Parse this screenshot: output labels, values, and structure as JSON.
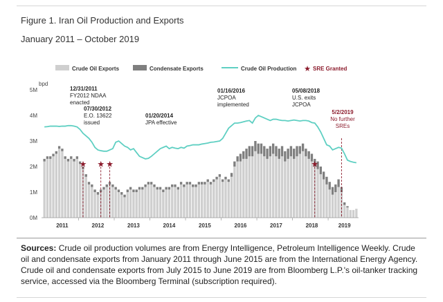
{
  "figure": {
    "title": "Figure 1. Iran Oil Production and Exports",
    "subtitle": "January 2011 – October 2019"
  },
  "chart_data": {
    "type": "bar",
    "title": "Figure 1. Iran Oil Production and Exports",
    "subtitle": "January 2011 – October 2019",
    "xlabel": "",
    "ylabel": "bpd",
    "ylim": [
      0,
      5
    ],
    "yticks": [
      {
        "value": 0,
        "label": "0M"
      },
      {
        "value": 1,
        "label": "1M"
      },
      {
        "value": 2,
        "label": "2M"
      },
      {
        "value": 3,
        "label": "3M"
      },
      {
        "value": 4,
        "label": "4M"
      },
      {
        "value": 5,
        "label": "5M"
      }
    ],
    "x_start_year": 2011,
    "months": 106,
    "xticks": [
      {
        "index": 6,
        "label": "2011"
      },
      {
        "index": 18,
        "label": "2012"
      },
      {
        "index": 30,
        "label": "2013"
      },
      {
        "index": 42,
        "label": "2014"
      },
      {
        "index": 54,
        "label": "2015"
      },
      {
        "index": 66,
        "label": "2016"
      },
      {
        "index": 78,
        "label": "2017"
      },
      {
        "index": 90,
        "label": "2018"
      },
      {
        "index": 101,
        "label": "2019"
      }
    ],
    "legend": [
      {
        "name": "Crude Oil Exports",
        "kind": "bar",
        "color": "#cfcfcf"
      },
      {
        "name": "Condensate Exports",
        "kind": "bar",
        "color": "#7f7f7f"
      },
      {
        "name": "Crude Oil Production",
        "kind": "line",
        "color": "#5ecfc2"
      },
      {
        "name": "SRE Granted",
        "kind": "star",
        "color": "#8b1a2b"
      }
    ],
    "legend_position": "top",
    "grid": false,
    "series": [
      {
        "name": "Crude Oil Exports",
        "values": [
          2.2,
          2.3,
          2.3,
          2.4,
          2.5,
          2.7,
          2.6,
          2.3,
          2.2,
          2.3,
          2.2,
          2.3,
          2.1,
          1.9,
          1.6,
          1.3,
          1.2,
          1.0,
          0.9,
          1.0,
          1.1,
          1.2,
          1.3,
          1.2,
          1.1,
          1.0,
          0.9,
          0.8,
          1.0,
          1.1,
          1.0,
          1.0,
          1.1,
          1.1,
          1.2,
          1.3,
          1.3,
          1.2,
          1.1,
          1.1,
          1.0,
          1.1,
          1.1,
          1.2,
          1.2,
          1.1,
          1.3,
          1.2,
          1.3,
          1.3,
          1.2,
          1.2,
          1.3,
          1.3,
          1.3,
          1.4,
          1.3,
          1.4,
          1.5,
          1.6,
          1.4,
          1.5,
          1.4,
          1.6,
          2.0,
          2.2,
          2.2,
          2.3,
          2.3,
          2.4,
          2.4,
          2.6,
          2.5,
          2.5,
          2.4,
          2.3,
          2.4,
          2.5,
          2.4,
          2.3,
          2.4,
          2.2,
          2.3,
          2.4,
          2.3,
          2.4,
          2.5,
          2.6,
          2.4,
          2.3,
          2.2,
          2.0,
          1.9,
          1.7,
          1.5,
          1.3,
          1.1,
          0.9,
          1.0,
          1.2,
          1.0,
          0.5,
          0.4,
          0.3,
          0.3,
          0.35
        ]
      },
      {
        "name": "Condensate Exports",
        "values": [
          0.1,
          0.1,
          0.1,
          0.1,
          0.1,
          0.1,
          0.1,
          0.1,
          0.1,
          0.1,
          0.1,
          0.1,
          0.1,
          0.1,
          0.1,
          0.1,
          0.1,
          0.1,
          0.1,
          0.1,
          0.1,
          0.1,
          0.1,
          0.1,
          0.1,
          0.1,
          0.1,
          0.1,
          0.1,
          0.1,
          0.1,
          0.1,
          0.1,
          0.1,
          0.1,
          0.1,
          0.1,
          0.1,
          0.1,
          0.1,
          0.1,
          0.1,
          0.1,
          0.1,
          0.1,
          0.1,
          0.1,
          0.1,
          0.1,
          0.1,
          0.1,
          0.1,
          0.1,
          0.1,
          0.1,
          0.1,
          0.1,
          0.1,
          0.1,
          0.1,
          0.1,
          0.1,
          0.1,
          0.15,
          0.2,
          0.2,
          0.3,
          0.3,
          0.4,
          0.4,
          0.4,
          0.4,
          0.4,
          0.4,
          0.4,
          0.4,
          0.4,
          0.4,
          0.4,
          0.4,
          0.4,
          0.4,
          0.4,
          0.4,
          0.4,
          0.4,
          0.3,
          0.3,
          0.3,
          0.3,
          0.3,
          0.3,
          0.3,
          0.3,
          0.3,
          0.3,
          0.3,
          0.3,
          0.3,
          0.3,
          0.2,
          0.1,
          0.05,
          0.0,
          0.0,
          0.0
        ]
      },
      {
        "name": "Crude Oil Production",
        "values": [
          3.55,
          3.56,
          3.58,
          3.58,
          3.58,
          3.57,
          3.58,
          3.58,
          3.6,
          3.6,
          3.58,
          3.55,
          3.45,
          3.3,
          3.2,
          3.1,
          2.95,
          2.75,
          2.65,
          2.62,
          2.6,
          2.6,
          2.65,
          2.7,
          2.95,
          3.0,
          2.9,
          2.8,
          2.75,
          2.65,
          2.7,
          2.55,
          2.4,
          2.35,
          2.3,
          2.32,
          2.4,
          2.5,
          2.6,
          2.7,
          2.75,
          2.8,
          2.7,
          2.75,
          2.72,
          2.7,
          2.75,
          2.72,
          2.8,
          2.82,
          2.85,
          2.85,
          2.85,
          2.88,
          2.9,
          2.92,
          2.95,
          2.96,
          2.98,
          3.0,
          3.1,
          3.3,
          3.5,
          3.6,
          3.7,
          3.7,
          3.72,
          3.75,
          3.78,
          3.8,
          3.7,
          3.9,
          4.0,
          3.95,
          3.9,
          3.85,
          3.8,
          3.85,
          3.85,
          3.82,
          3.8,
          3.8,
          3.78,
          3.8,
          3.82,
          3.8,
          3.78,
          3.8,
          3.8,
          3.78,
          3.72,
          3.7,
          3.55,
          3.35,
          3.1,
          2.85,
          2.8,
          2.65,
          2.7,
          2.75,
          2.72,
          2.5,
          2.25,
          2.2,
          2.17,
          2.15
        ]
      }
    ],
    "sre_points": [
      {
        "index": 13,
        "value": 2.1
      },
      {
        "index": 19,
        "value": 2.1
      },
      {
        "index": 22,
        "value": 2.1
      },
      {
        "index": 91,
        "value": 2.1
      }
    ],
    "annotations": [
      {
        "id": "ndaa",
        "date": "12/31/2011",
        "lines": [
          "FY2012 NDAA",
          "enacted"
        ],
        "index": 12,
        "color": "#222222"
      },
      {
        "id": "eo13622",
        "date": "07/30/2012",
        "lines": [
          "E.O. 13622",
          "issued"
        ],
        "index": 19,
        "color": "#222222"
      },
      {
        "id": "jpa",
        "date": "01/20/2014",
        "lines": [
          "JPA effective"
        ],
        "index": 36,
        "color": "#222222"
      },
      {
        "id": "jcpoa-impl",
        "date": "01/16/2016",
        "lines": [
          "JCPOA",
          "implemented"
        ],
        "index": 60,
        "color": "#222222"
      },
      {
        "id": "us-exits",
        "date": "05/08/2018",
        "lines": [
          "U.S. exits",
          "JCPOA"
        ],
        "index": 88,
        "color": "#222222"
      },
      {
        "id": "no-sre",
        "date": "5/2/2019",
        "lines": [
          "No further",
          "SREs"
        ],
        "index": 100,
        "color": "#8b1a2b"
      }
    ],
    "colors": {
      "crude": "#cfcfcf",
      "condensate": "#7f7f7f",
      "production": "#5ecfc2",
      "sre": "#8b1a2b"
    }
  },
  "sources": {
    "label": "Sources:",
    "text": " Crude oil production volumes are from Energy Intelligence, Petroleum Intelligence Weekly. Crude oil and condensate exports from January 2011 through June 2015 are from the International Energy Agency. Crude oil and condensate exports from July 2015 to June 2019 are from Bloomberg L.P.'s oil-tanker tracking service, accessed via the Bloomberg Terminal (subscription required)."
  }
}
